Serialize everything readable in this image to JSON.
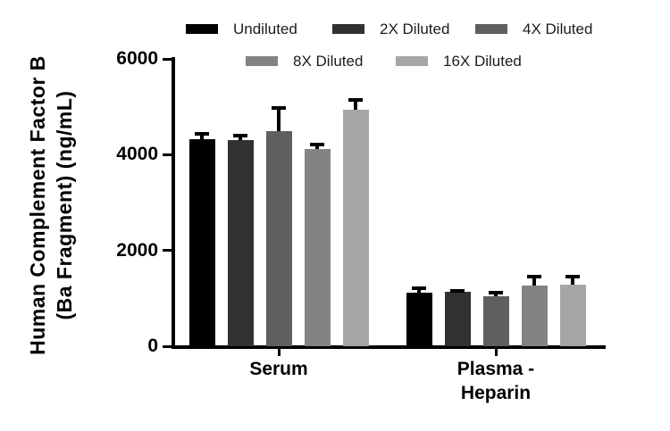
{
  "chart_data": {
    "type": "bar",
    "title": "",
    "ylabel": "Human Complement Factor B\n(Ba Fragment) (ng/mL)",
    "xlabel": "",
    "categories": [
      "Serum",
      "Plasma -\nHeparin"
    ],
    "series": [
      {
        "name": "Undiluted",
        "color": "#000000",
        "values": [
          4330,
          1120
        ],
        "errors": [
          100,
          95
        ]
      },
      {
        "name": "2X Diluted",
        "color": "#313131",
        "values": [
          4310,
          1130
        ],
        "errors": [
          95,
          30
        ]
      },
      {
        "name": "4X Diluted",
        "color": "#5f5f5f",
        "values": [
          4490,
          1040
        ],
        "errors": [
          490,
          75
        ]
      },
      {
        "name": "8X Diluted",
        "color": "#838383",
        "values": [
          4110,
          1270
        ],
        "errors": [
          105,
          190
        ]
      },
      {
        "name": "16X Diluted",
        "color": "#a6a6a6",
        "values": [
          4940,
          1290
        ],
        "errors": [
          200,
          170
        ]
      }
    ],
    "yticks": [
      "0",
      "2000",
      "4000",
      "6000"
    ],
    "ytick_values": [
      0,
      2000,
      4000,
      6000
    ],
    "ylim": [
      0,
      6000
    ],
    "legend_position": "top",
    "legend_rows": [
      [
        "Undiluted",
        "2X Diluted",
        "4X Diluted"
      ],
      [
        "8X Diluted",
        "16X Diluted"
      ]
    ],
    "grid": false,
    "error_bars": "upper",
    "axis_color": "#000000",
    "background_color": "#ffffff"
  }
}
